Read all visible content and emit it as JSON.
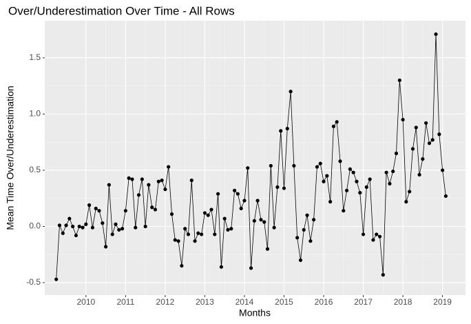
{
  "chart_data": {
    "type": "line",
    "title": "Over/Underestimation Over Time - All Rows",
    "x_label": "Months",
    "y_label": "Mean Time Over/Underestimation",
    "x": [
      2009.25,
      2009.333,
      2009.417,
      2009.5,
      2009.583,
      2009.667,
      2009.75,
      2009.833,
      2009.917,
      2010,
      2010.083,
      2010.167,
      2010.25,
      2010.333,
      2010.417,
      2010.5,
      2010.583,
      2010.667,
      2010.75,
      2010.833,
      2010.917,
      2011,
      2011.083,
      2011.167,
      2011.25,
      2011.333,
      2011.417,
      2011.5,
      2011.583,
      2011.667,
      2011.75,
      2011.833,
      2011.917,
      2012,
      2012.083,
      2012.167,
      2012.25,
      2012.333,
      2012.417,
      2012.5,
      2012.583,
      2012.667,
      2012.75,
      2012.833,
      2012.917,
      2013,
      2013.083,
      2013.167,
      2013.25,
      2013.333,
      2013.417,
      2013.5,
      2013.583,
      2013.667,
      2013.75,
      2013.833,
      2013.917,
      2014,
      2014.083,
      2014.167,
      2014.25,
      2014.333,
      2014.417,
      2014.5,
      2014.583,
      2014.667,
      2014.75,
      2014.833,
      2014.917,
      2015,
      2015.083,
      2015.167,
      2015.25,
      2015.333,
      2015.417,
      2015.5,
      2015.583,
      2015.667,
      2015.75,
      2015.833,
      2015.917,
      2016,
      2016.083,
      2016.167,
      2016.25,
      2016.333,
      2016.417,
      2016.5,
      2016.583,
      2016.667,
      2016.75,
      2016.833,
      2016.917,
      2017,
      2017.083,
      2017.167,
      2017.25,
      2017.333,
      2017.417,
      2017.5,
      2017.583,
      2017.667,
      2017.75,
      2017.833,
      2017.917,
      2018,
      2018.083,
      2018.167,
      2018.25,
      2018.333,
      2018.417,
      2018.5,
      2018.583,
      2018.667,
      2018.75,
      2018.833,
      2018.917,
      2019,
      2019.083
    ],
    "series": [
      {
        "color": "#000000",
        "values": [
          -0.47,
          0.01,
          -0.06,
          0.01,
          0.07,
          0.0,
          -0.08,
          0.0,
          -0.01,
          0.02,
          0.19,
          -0.01,
          0.16,
          0.14,
          0.03,
          -0.18,
          0.37,
          -0.07,
          0.02,
          -0.03,
          -0.02,
          0.14,
          0.43,
          0.42,
          -0.01,
          0.28,
          0.42,
          0.0,
          0.37,
          0.17,
          0.15,
          0.4,
          0.41,
          0.33,
          0.53,
          0.11,
          -0.12,
          -0.13,
          -0.35,
          -0.02,
          -0.07,
          0.41,
          -0.13,
          -0.06,
          -0.07,
          0.12,
          0.1,
          0.15,
          -0.07,
          0.29,
          -0.36,
          0.07,
          -0.03,
          -0.02,
          0.32,
          0.29,
          0.16,
          0.23,
          0.52,
          -0.37,
          0.05,
          0.23,
          0.06,
          0.04,
          -0.2,
          0.54,
          -0.01,
          0.35,
          0.85,
          0.34,
          0.87,
          1.2,
          0.54,
          -0.1,
          -0.3,
          -0.03,
          0.1,
          -0.13,
          0.06,
          0.53,
          0.56,
          0.4,
          0.45,
          0.22,
          0.89,
          0.93,
          0.58,
          0.14,
          0.32,
          0.51,
          0.48,
          0.4,
          0.3,
          -0.07,
          0.35,
          0.42,
          -0.12,
          -0.07,
          -0.09,
          -0.43,
          0.48,
          0.38,
          0.49,
          0.65,
          1.3,
          0.95,
          0.22,
          0.31,
          0.69,
          0.88,
          0.46,
          0.6,
          0.92,
          0.74,
          0.77,
          1.71,
          0.82,
          0.5,
          0.27
        ]
      }
    ],
    "xlim": [
      2008.96,
      2019.58
    ],
    "xticks": [
      2010,
      2011,
      2012,
      2013,
      2014,
      2015,
      2016,
      2017,
      2018,
      2019
    ],
    "ylim": [
      -0.61,
      1.83
    ],
    "yticks": [
      -0.5,
      {
        "value": 0,
        "label": "0.0"
      },
      0.5,
      {
        "value": 1,
        "label": "1.0"
      },
      1.5
    ],
    "grid": true
  }
}
